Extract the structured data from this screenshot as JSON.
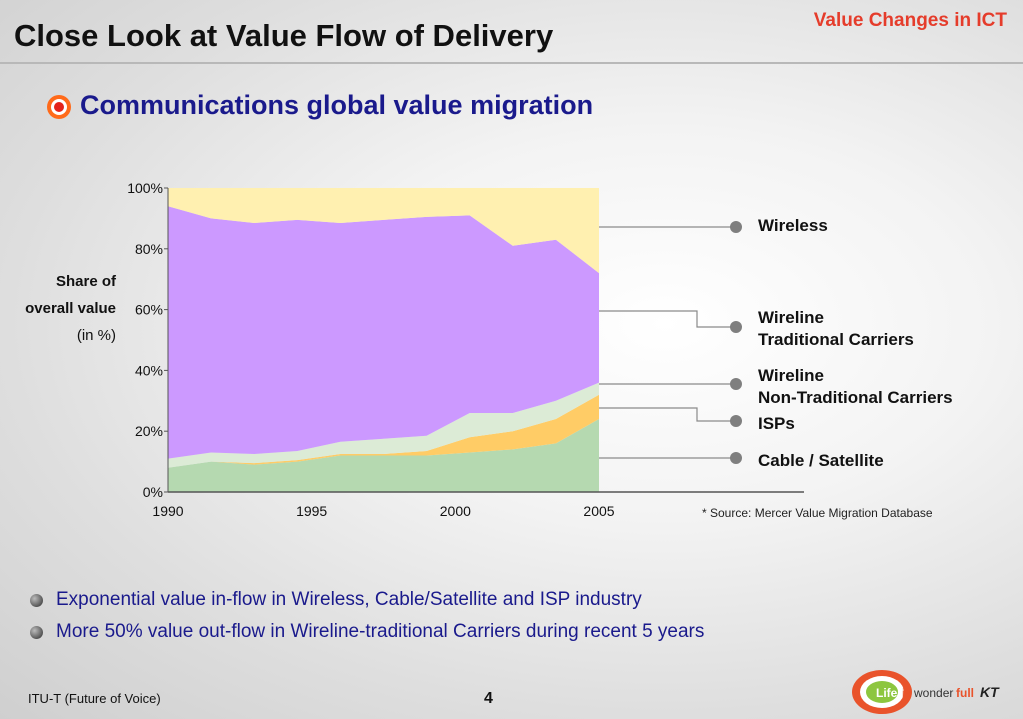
{
  "header": {
    "title": "Close Look at Value Flow of Delivery",
    "tag": "Value Changes in ICT",
    "subtitle": "Communications global value migration"
  },
  "chart_data": {
    "type": "area",
    "stacked": true,
    "x": [
      1990,
      1991.5,
      1993,
      1994.5,
      1996,
      1997.5,
      1999,
      2000.5,
      2002,
      2003.5,
      2005
    ],
    "xticks": [
      "1990",
      "1995",
      "2000",
      "2005"
    ],
    "yticks": [
      "0%",
      "20%",
      "40%",
      "60%",
      "80%",
      "100%"
    ],
    "ylim": [
      0,
      100
    ],
    "ylabel": "Share of overall value",
    "ylabel_unit": "(in %)",
    "series": [
      {
        "name": "Cable / Satellite",
        "color": "#b5d9b0",
        "values": [
          8,
          10,
          9,
          10,
          12,
          12,
          12,
          13,
          14,
          16,
          24
        ]
      },
      {
        "name": "ISPs",
        "color": "#ffcc66",
        "values": [
          0,
          0,
          0.5,
          0.5,
          0.5,
          0.5,
          1.5,
          5,
          6,
          8,
          8
        ]
      },
      {
        "name": "Wireline Non-Traditional Carriers",
        "color": "#dcebd6",
        "values": [
          3,
          3,
          3,
          3,
          4,
          5,
          5,
          8,
          6,
          6,
          4
        ]
      },
      {
        "name": "Wireline Traditional Carriers",
        "color": "#cc99ff",
        "values": [
          83,
          77,
          76,
          76,
          72,
          72,
          72,
          65,
          55,
          53,
          36
        ]
      },
      {
        "name": "Wireless",
        "color": "#fff0b0",
        "values": [
          6,
          10,
          11.5,
          10.5,
          11.5,
          10.5,
          9.5,
          9,
          19,
          17,
          28
        ]
      }
    ],
    "legend": {
      "placement": "right",
      "entries": [
        {
          "line1": "Wireless",
          "line2": ""
        },
        {
          "line1": "Wireline",
          "line2": "Traditional Carriers"
        },
        {
          "line1": "Wireline",
          "line2": "Non-Traditional Carriers"
        },
        {
          "line1": "ISPs",
          "line2": ""
        },
        {
          "line1": "Cable / Satellite",
          "line2": ""
        }
      ]
    }
  },
  "source_note": "* Source:  Mercer Value Migration Database",
  "bullets": [
    "Exponential value in-flow in Wireless, Cable/Satellite and ISP industry",
    "More 50% value out-flow in Wireline-traditional Carriers during recent 5 years"
  ],
  "footer": {
    "left": "ITU-T (Future of Voice)",
    "page": "4",
    "logo_text": "Life is wonderfull KT"
  },
  "colors": {
    "title_accent": "#e53c2b",
    "subtitle": "#1a1a8c",
    "bullet_text": "#1a1a8c"
  }
}
